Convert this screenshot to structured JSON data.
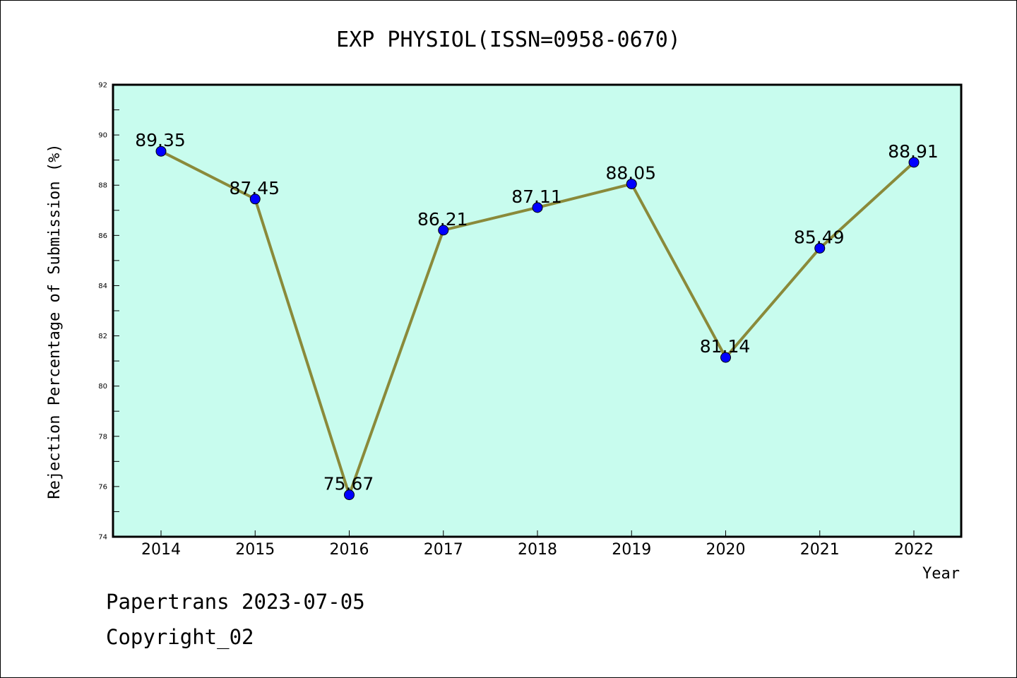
{
  "chart_data": {
    "type": "line",
    "title": "EXP PHYSIOL(ISSN=0958-0670)",
    "xlabel": "Year",
    "ylabel": "Rejection Percentage of Submission (%)",
    "categories": [
      "2014",
      "2015",
      "2016",
      "2017",
      "2018",
      "2019",
      "2020",
      "2021",
      "2022"
    ],
    "series": [
      {
        "values": [
          89.35,
          87.45,
          75.67,
          86.21,
          87.11,
          88.05,
          81.14,
          85.49,
          88.91
        ],
        "labels": [
          "89.35",
          "87.45",
          "75.67",
          "86.21",
          "87.11",
          "88.05",
          "81.14",
          "85.49",
          "88.91"
        ]
      }
    ],
    "ylim": [
      74,
      92
    ],
    "yticks": [
      "74",
      "76",
      "78",
      "80",
      "82",
      "84",
      "86",
      "88",
      "90",
      "92"
    ],
    "grid": false,
    "colors": {
      "plot_background": "#c8fcee",
      "line": "#8a8a3a",
      "marker": "#0000ff"
    }
  },
  "footer": {
    "line1": "Papertrans 2023-07-05",
    "line2": "Copyright_02"
  }
}
